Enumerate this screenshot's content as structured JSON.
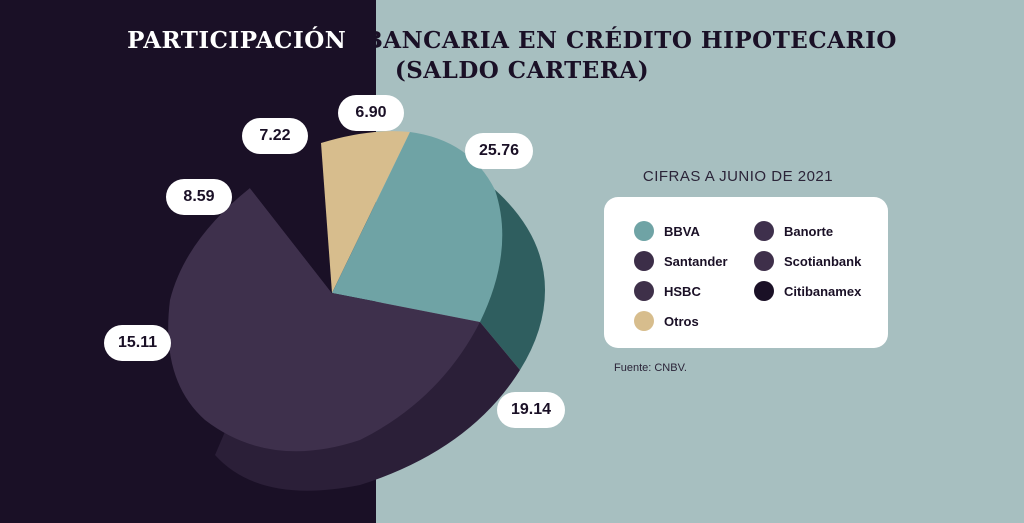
{
  "title": {
    "part1": "PARTICIPACIÓN",
    "part2": "BANCARIA EN CRÉDITO HIPOTECARIO",
    "line2": "(SALDO CARTERA)"
  },
  "subtitle": "CIFRAS A JUNIO DE 2021",
  "source": "Fuente: CNBV.",
  "colors": {
    "background_left": "#1a1026",
    "background_right": "#a7bfc0",
    "bbva": "#6fa3a5",
    "banorte": "#3e304c",
    "santander": "#3c2e48",
    "scotiabank": "#3e2f4a",
    "hsbc": "#3e3049",
    "citibanamex": "#1a1026",
    "otros": "#d7bd8d"
  },
  "chart_data": {
    "type": "pie",
    "style": "3d-exploded",
    "slices": [
      {
        "name": "BBVA",
        "value": 25.76,
        "color": "#6fa3a5"
      },
      {
        "name": "Banorte",
        "value": 19.14,
        "color": "#2e5d5d"
      },
      {
        "name": "Santander",
        "value": 15.11,
        "color": "#3c2e48"
      },
      {
        "name": "Scotianbank",
        "value": 8.59,
        "color": "#3e2f4a"
      },
      {
        "name": "HSBC",
        "value": 7.22,
        "color": "#3e3049"
      },
      {
        "name": "Citibanamex",
        "value": 6.9,
        "color": "#1a1026"
      },
      {
        "name": "Otros",
        "value": 6.9,
        "color": "#d7bd8d"
      }
    ],
    "value_labels": [
      "25.76",
      "19.14",
      "15.11",
      "8.59",
      "7.22",
      "6.90"
    ],
    "legend": [
      {
        "label": "BBVA",
        "color": "#6fa3a5"
      },
      {
        "label": "Banorte",
        "color": "#3e304c"
      },
      {
        "label": "Santander",
        "color": "#3c2e48"
      },
      {
        "label": "Scotianbank",
        "color": "#3e2f4a"
      },
      {
        "label": "HSBC",
        "color": "#3e3049"
      },
      {
        "label": "Citibanamex",
        "color": "#1a1026"
      },
      {
        "label": "Otros",
        "color": "#d7bd8d"
      }
    ]
  }
}
